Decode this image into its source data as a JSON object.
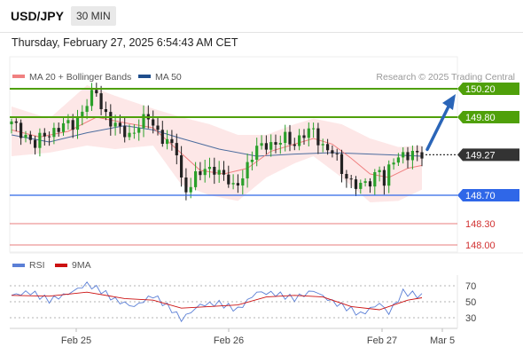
{
  "header": {
    "symbol": "USD/JPY",
    "interval": "30 MIN",
    "datetime": "Thursday, February 27, 2025 6:54:43 AM CET"
  },
  "legend": {
    "ma20_label": "MA 20 + Bollinger Bands",
    "ma50_label": "MA 50",
    "credit": "Research © 2025 Trading Central",
    "ma20_color": "#f08080",
    "ma50_color": "#1f4e8c"
  },
  "rsi_legend": {
    "rsi_label": "RSI",
    "ma9_label": "9MA",
    "rsi_color": "#5b7fd6",
    "ma9_color": "#cc1111"
  },
  "chart_data": {
    "type": "candlestick",
    "instrument": "USD/JPY",
    "timeframe": "30 MIN",
    "x_ticks": [
      "Feb 25",
      "Feb 26",
      "Feb 27",
      "Mar 5"
    ],
    "current_price": 149.27,
    "levels": [
      {
        "value": 150.2,
        "label": "150.20",
        "color": "#4fa00a",
        "kind": "resistance"
      },
      {
        "value": 149.8,
        "label": "149.80",
        "color": "#4fa00a",
        "kind": "resistance"
      },
      {
        "value": 148.7,
        "label": "148.70",
        "color": "#2f67e8",
        "kind": "pivot"
      },
      {
        "value": 148.3,
        "label": "148.30",
        "color": "#e05050",
        "kind": "support"
      },
      {
        "value": 148.0,
        "label": "148.00",
        "color": "#e05050",
        "kind": "support"
      }
    ],
    "current_label": {
      "value": 149.27,
      "label": "149.27",
      "color": "#333333"
    },
    "close_path": [
      [
        0,
        149.7
      ],
      [
        3,
        149.55
      ],
      [
        5,
        149.4
      ],
      [
        7,
        149.55
      ],
      [
        10,
        149.65
      ],
      [
        13,
        149.7
      ],
      [
        16,
        150.0
      ],
      [
        18,
        150.15
      ],
      [
        19,
        149.95
      ],
      [
        21,
        149.75
      ],
      [
        23,
        149.6
      ],
      [
        25,
        149.55
      ],
      [
        27,
        149.7
      ],
      [
        29,
        149.78
      ],
      [
        31,
        149.6
      ],
      [
        33,
        149.45
      ],
      [
        35,
        149.3
      ],
      [
        36,
        148.9
      ],
      [
        37,
        148.8
      ],
      [
        39,
        148.95
      ],
      [
        41,
        149.05
      ],
      [
        43,
        149.1
      ],
      [
        45,
        148.95
      ],
      [
        47,
        148.8
      ],
      [
        48,
        148.9
      ],
      [
        50,
        149.1
      ],
      [
        52,
        149.35
      ],
      [
        54,
        149.45
      ],
      [
        56,
        149.4
      ],
      [
        58,
        149.5
      ],
      [
        60,
        149.45
      ],
      [
        62,
        149.55
      ],
      [
        64,
        149.6
      ],
      [
        66,
        149.4
      ],
      [
        68,
        149.3
      ],
      [
        70,
        149.05
      ],
      [
        72,
        148.9
      ],
      [
        74,
        148.8
      ],
      [
        76,
        148.9
      ],
      [
        78,
        149.1
      ],
      [
        79,
        148.85
      ],
      [
        81,
        149.2
      ],
      [
        83,
        149.3
      ],
      [
        85,
        149.25
      ],
      [
        87,
        149.27
      ]
    ],
    "ma20": [
      [
        0,
        149.62
      ],
      [
        6,
        149.52
      ],
      [
        12,
        149.6
      ],
      [
        18,
        149.8
      ],
      [
        24,
        149.72
      ],
      [
        30,
        149.65
      ],
      [
        35,
        149.35
      ],
      [
        40,
        149.05
      ],
      [
        45,
        149.0
      ],
      [
        50,
        149.08
      ],
      [
        55,
        149.32
      ],
      [
        60,
        149.42
      ],
      [
        64,
        149.5
      ],
      [
        68,
        149.42
      ],
      [
        72,
        149.22
      ],
      [
        76,
        149.0
      ],
      [
        80,
        148.95
      ],
      [
        84,
        149.08
      ],
      [
        87,
        149.12
      ]
    ],
    "ma50": [
      [
        0,
        149.55
      ],
      [
        8,
        149.45
      ],
      [
        16,
        149.58
      ],
      [
        24,
        149.68
      ],
      [
        30,
        149.62
      ],
      [
        36,
        149.5
      ],
      [
        44,
        149.35
      ],
      [
        52,
        149.25
      ],
      [
        60,
        149.28
      ],
      [
        68,
        149.3
      ],
      [
        76,
        149.28
      ],
      [
        84,
        149.26
      ],
      [
        87,
        149.25
      ]
    ],
    "bollinger_upper": [
      [
        0,
        149.95
      ],
      [
        8,
        149.78
      ],
      [
        16,
        150.25
      ],
      [
        22,
        150.1
      ],
      [
        30,
        149.92
      ],
      [
        36,
        149.8
      ],
      [
        42,
        149.7
      ],
      [
        48,
        149.55
      ],
      [
        54,
        149.55
      ],
      [
        60,
        149.7
      ],
      [
        64,
        149.78
      ],
      [
        70,
        149.7
      ],
      [
        76,
        149.5
      ],
      [
        82,
        149.38
      ],
      [
        87,
        149.4
      ]
    ],
    "bollinger_lower": [
      [
        0,
        149.25
      ],
      [
        8,
        149.3
      ],
      [
        16,
        149.4
      ],
      [
        22,
        149.35
      ],
      [
        30,
        149.4
      ],
      [
        36,
        148.85
      ],
      [
        42,
        148.7
      ],
      [
        48,
        148.62
      ],
      [
        54,
        148.95
      ],
      [
        60,
        149.15
      ],
      [
        64,
        149.25
      ],
      [
        70,
        148.95
      ],
      [
        76,
        148.6
      ],
      [
        82,
        148.62
      ],
      [
        87,
        148.78
      ]
    ],
    "rsi": {
      "ticks": [
        70,
        50,
        30
      ],
      "range": [
        20,
        80
      ],
      "rsi_path": [
        [
          0,
          58
        ],
        [
          4,
          62
        ],
        [
          8,
          52
        ],
        [
          12,
          60
        ],
        [
          16,
          72
        ],
        [
          19,
          64
        ],
        [
          22,
          52
        ],
        [
          26,
          44
        ],
        [
          30,
          58
        ],
        [
          34,
          40
        ],
        [
          36,
          28
        ],
        [
          40,
          46
        ],
        [
          44,
          48
        ],
        [
          48,
          40
        ],
        [
          52,
          62
        ],
        [
          56,
          60
        ],
        [
          60,
          54
        ],
        [
          64,
          64
        ],
        [
          68,
          50
        ],
        [
          72,
          40
        ],
        [
          74,
          34
        ],
        [
          78,
          48
        ],
        [
          80,
          36
        ],
        [
          83,
          62
        ],
        [
          87,
          57
        ]
      ],
      "ma9_path": [
        [
          0,
          58
        ],
        [
          8,
          57
        ],
        [
          16,
          62
        ],
        [
          24,
          54
        ],
        [
          30,
          52
        ],
        [
          36,
          42
        ],
        [
          42,
          44
        ],
        [
          48,
          46
        ],
        [
          54,
          56
        ],
        [
          60,
          58
        ],
        [
          66,
          56
        ],
        [
          72,
          44
        ],
        [
          78,
          40
        ],
        [
          84,
          52
        ],
        [
          87,
          55
        ]
      ]
    }
  }
}
